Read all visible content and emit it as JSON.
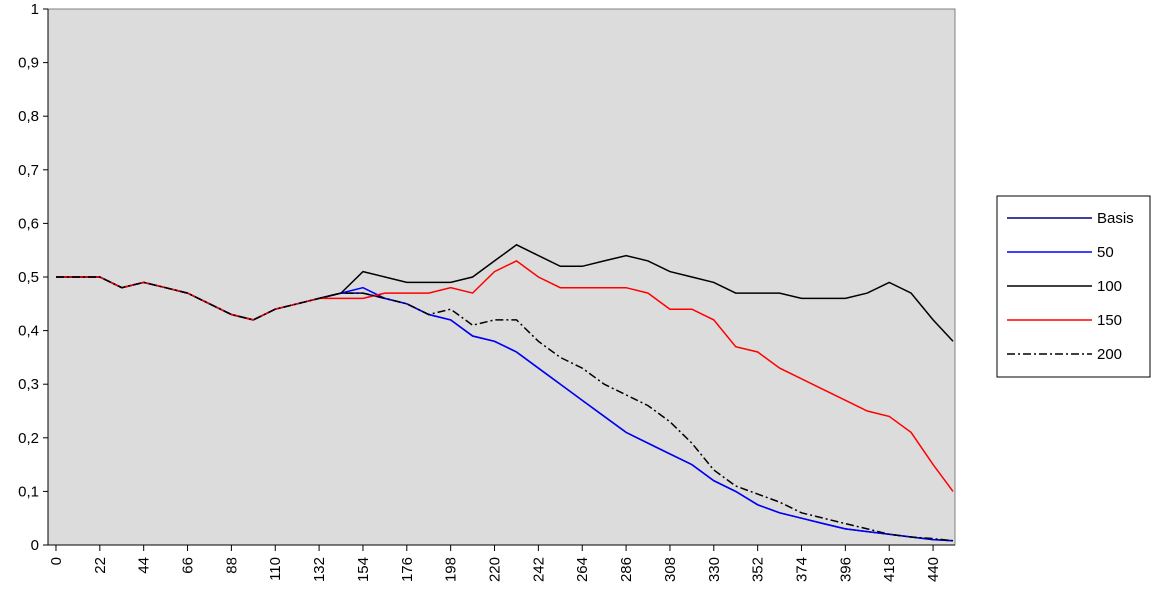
{
  "chart_data": {
    "type": "line",
    "x": [
      0,
      11,
      22,
      33,
      44,
      55,
      66,
      77,
      88,
      99,
      110,
      121,
      132,
      143,
      154,
      165,
      176,
      187,
      198,
      209,
      220,
      231,
      242,
      253,
      264,
      275,
      286,
      297,
      308,
      319,
      330,
      341,
      352,
      363,
      374,
      385,
      396,
      407,
      418,
      429,
      440,
      450
    ],
    "series": [
      {
        "name": "Basis",
        "color": "#000080",
        "values": [
          0.5,
          0.5,
          0.5,
          0.48,
          0.49,
          0.48,
          0.47,
          0.45,
          0.43,
          0.42,
          0.44,
          0.45,
          0.46,
          0.47,
          0.47,
          0.46,
          0.45,
          0.43,
          0.42,
          0.39,
          0.38,
          0.36,
          0.33,
          0.3,
          0.27,
          0.24,
          0.21,
          0.19,
          0.17,
          0.15,
          0.12,
          0.1,
          0.075,
          0.06,
          0.05,
          0.04,
          0.03,
          0.025,
          0.02,
          0.015,
          0.01,
          0.008
        ]
      },
      {
        "name": "50",
        "color": "#0000ff",
        "values": [
          0.5,
          0.5,
          0.5,
          0.48,
          0.49,
          0.48,
          0.47,
          0.45,
          0.43,
          0.42,
          0.44,
          0.45,
          0.46,
          0.47,
          0.48,
          0.46,
          0.45,
          0.43,
          0.42,
          0.39,
          0.38,
          0.36,
          0.33,
          0.3,
          0.27,
          0.24,
          0.21,
          0.19,
          0.17,
          0.15,
          0.12,
          0.1,
          0.075,
          0.06,
          0.05,
          0.04,
          0.03,
          0.025,
          0.02,
          0.015,
          0.01,
          0.008
        ]
      },
      {
        "name": "100",
        "color": "#000000",
        "values": [
          0.5,
          0.5,
          0.5,
          0.48,
          0.49,
          0.48,
          0.47,
          0.45,
          0.43,
          0.42,
          0.44,
          0.45,
          0.46,
          0.47,
          0.51,
          0.5,
          0.49,
          0.49,
          0.49,
          0.5,
          0.53,
          0.56,
          0.54,
          0.52,
          0.52,
          0.53,
          0.54,
          0.53,
          0.51,
          0.5,
          0.49,
          0.47,
          0.47,
          0.47,
          0.46,
          0.46,
          0.46,
          0.47,
          0.49,
          0.47,
          0.42,
          0.38
        ]
      },
      {
        "name": "150",
        "color": "#ff0000",
        "values": [
          0.5,
          0.5,
          0.5,
          0.48,
          0.49,
          0.48,
          0.47,
          0.45,
          0.43,
          0.42,
          0.44,
          0.45,
          0.46,
          0.46,
          0.46,
          0.47,
          0.47,
          0.47,
          0.48,
          0.47,
          0.51,
          0.53,
          0.5,
          0.48,
          0.48,
          0.48,
          0.48,
          0.47,
          0.44,
          0.44,
          0.42,
          0.37,
          0.36,
          0.33,
          0.31,
          0.29,
          0.27,
          0.25,
          0.24,
          0.21,
          0.15,
          0.1
        ]
      },
      {
        "name": "200",
        "color": "#000000",
        "dash": "dash-dot",
        "values": [
          0.5,
          0.5,
          0.5,
          0.48,
          0.49,
          0.48,
          0.47,
          0.45,
          0.43,
          0.42,
          0.44,
          0.45,
          0.46,
          0.47,
          0.47,
          0.46,
          0.45,
          0.43,
          0.44,
          0.41,
          0.42,
          0.42,
          0.38,
          0.35,
          0.33,
          0.3,
          0.28,
          0.26,
          0.23,
          0.19,
          0.14,
          0.11,
          0.095,
          0.08,
          0.06,
          0.05,
          0.04,
          0.03,
          0.02,
          0.015,
          0.012,
          0.008
        ]
      }
    ],
    "xlim": [
      -4,
      451
    ],
    "xticks": [
      0,
      22,
      44,
      66,
      88,
      110,
      132,
      154,
      176,
      198,
      220,
      242,
      264,
      286,
      308,
      330,
      352,
      374,
      396,
      418,
      440
    ],
    "ylim": [
      0,
      1
    ],
    "yticks": [
      0,
      {
        "value": 0.1,
        "label": "0,1"
      },
      {
        "value": 0.2,
        "label": "0,2"
      },
      {
        "value": 0.3,
        "label": "0,3"
      },
      {
        "value": 0.4,
        "label": "0,4"
      },
      {
        "value": 0.5,
        "label": "0,5"
      },
      {
        "value": 0.6,
        "label": "0,6"
      },
      {
        "value": 0.7,
        "label": "0,7"
      },
      {
        "value": 0.8,
        "label": "0,8"
      },
      {
        "value": 0.9,
        "label": "0,9"
      },
      1
    ],
    "legend": "right",
    "plot_background": "#dcdcdc"
  }
}
